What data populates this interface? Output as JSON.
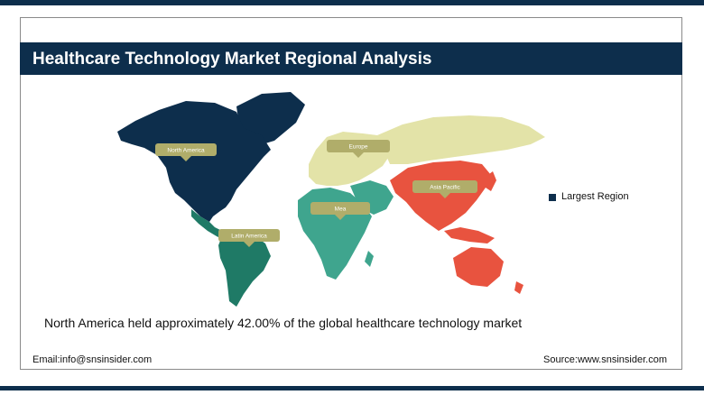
{
  "header": {
    "title": "Healthcare Technology Market Regional Analysis"
  },
  "map": {
    "regions": [
      {
        "id": "north-america",
        "label": "North America",
        "color": "#0d2e4c",
        "largest": true
      },
      {
        "id": "europe",
        "label": "Europe",
        "color": "#e3e3a8"
      },
      {
        "id": "asia-pacific",
        "label": "Asia Pacific",
        "color": "#e8533f"
      },
      {
        "id": "mea",
        "label": "Mea",
        "color": "#3fa58e"
      },
      {
        "id": "latin-america",
        "label": "Latin America",
        "color": "#1f7a66"
      }
    ],
    "callout_color": "#b0ad6a"
  },
  "legend": {
    "label": "Largest Region",
    "color": "#0d2e4c"
  },
  "headline": "North America held approximately 42.00% of the global healthcare technology market",
  "footer": {
    "email": "Email:info@snsinsider.com",
    "source": "Source:www.snsinsider.com"
  }
}
